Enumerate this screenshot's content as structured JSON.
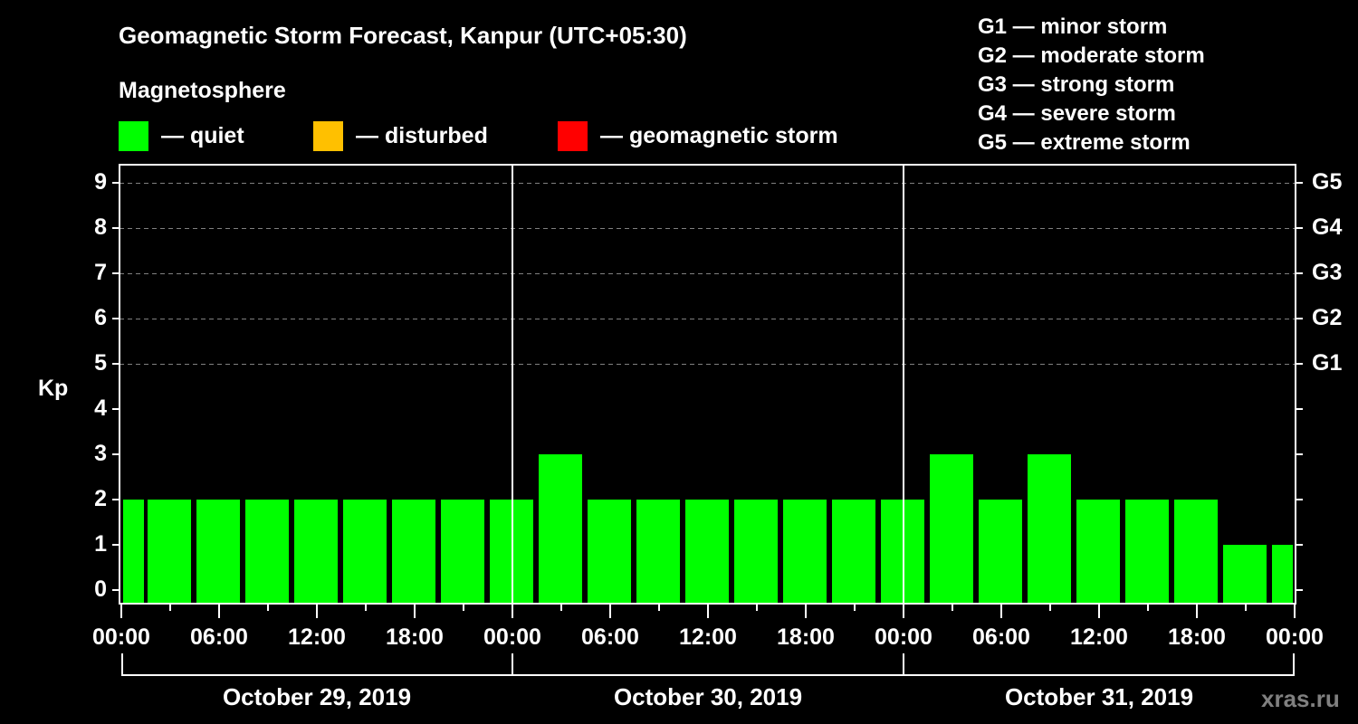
{
  "header": {
    "title": "Geomagnetic Storm Forecast, Kanpur (UTC+05:30)",
    "subtitle": "Magnetosphere"
  },
  "legend": [
    {
      "label": "— quiet",
      "color": "#00ff00"
    },
    {
      "label": "— disturbed",
      "color": "#ffc000"
    },
    {
      "label": "— geomagnetic storm",
      "color": "#ff0000"
    }
  ],
  "storm_scale": [
    "G1 — minor storm",
    "G2 — moderate storm",
    "G3 — strong storm",
    "G4 — severe storm",
    "G5 — extreme storm"
  ],
  "watermark": "xras.ru",
  "chart_data": {
    "type": "bar",
    "title": "Geomagnetic Storm Forecast, Kanpur (UTC+05:30)",
    "ylabel": "Kp",
    "xlabel": "",
    "ylim": [
      0,
      9
    ],
    "yticks": [
      "0",
      "1",
      "2",
      "3",
      "4",
      "5",
      "6",
      "7",
      "8",
      "9"
    ],
    "right_ticks": [
      {
        "kp": 5,
        "label": "G1"
      },
      {
        "kp": 6,
        "label": "G2"
      },
      {
        "kp": 7,
        "label": "G3"
      },
      {
        "kp": 8,
        "label": "G4"
      },
      {
        "kp": 9,
        "label": "G5"
      }
    ],
    "xticks": [
      "00:00",
      "06:00",
      "12:00",
      "18:00",
      "00:00",
      "06:00",
      "12:00",
      "18:00",
      "00:00",
      "06:00",
      "12:00",
      "18:00",
      "00:00"
    ],
    "days": [
      "October 29, 2019",
      "October 30, 2019",
      "October 31, 2019"
    ],
    "grid": "dashed horizontal at Kp 5-9",
    "interval_hours": 3,
    "series": [
      {
        "name": "Kp",
        "values": [
          2,
          2,
          2,
          2,
          2,
          2,
          2,
          2,
          2,
          3,
          2,
          2,
          2,
          2,
          2,
          2,
          2,
          3,
          2,
          3,
          2,
          2,
          2,
          1,
          1
        ],
        "colors": [
          "#00ff00"
        ]
      }
    ]
  }
}
